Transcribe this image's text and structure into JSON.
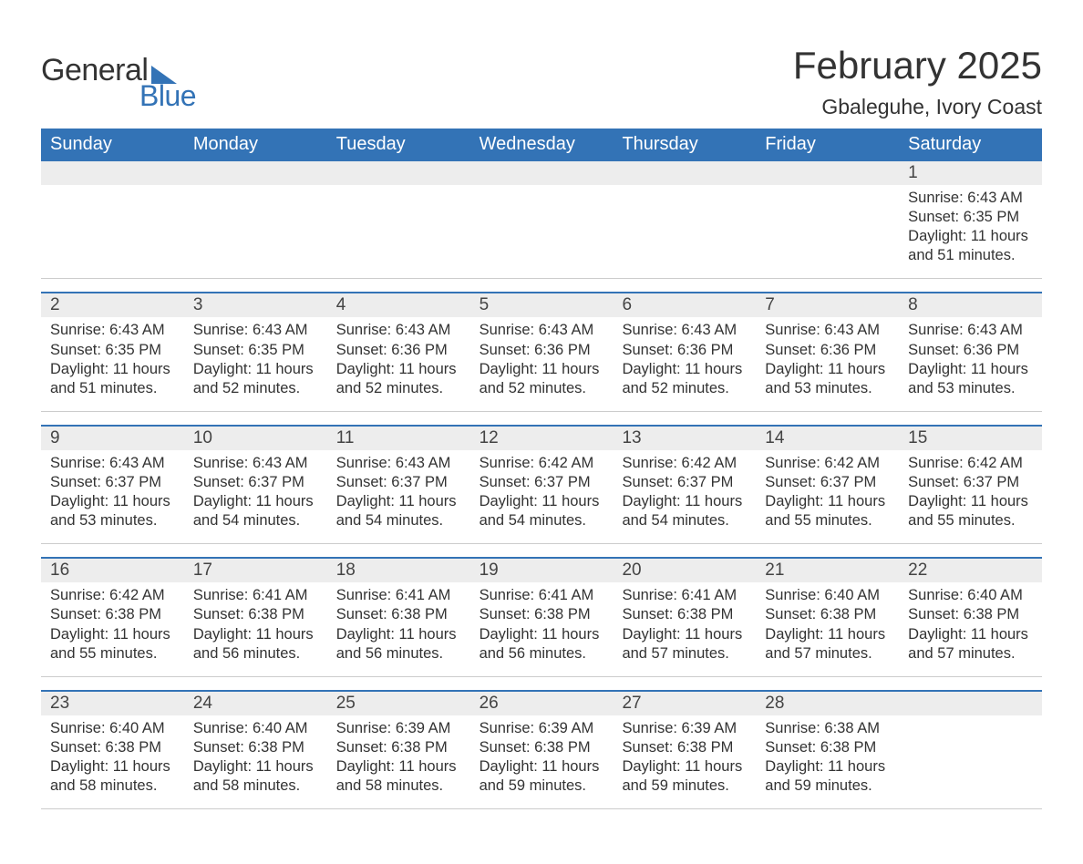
{
  "brand": {
    "word1": "General",
    "word2": "Blue"
  },
  "title": "February 2025",
  "subtitle": "Gbaleguhe, Ivory Coast",
  "colors": {
    "accent": "#3373b6",
    "header_text": "#ffffff",
    "daynum_bg": "#ededed",
    "text": "#333333",
    "background": "#ffffff",
    "row_border_top": "#3373b6",
    "row_border_bottom": "#cccccc"
  },
  "typography": {
    "title_fontsize": 42,
    "subtitle_fontsize": 23,
    "dayhead_fontsize": 20,
    "daynum_fontsize": 19,
    "info_fontsize": 16.5,
    "logo_fontsize": 34
  },
  "layout": {
    "columns": 7,
    "rows": 5,
    "cell_min_height": 120
  },
  "day_headers": [
    "Sunday",
    "Monday",
    "Tuesday",
    "Wednesday",
    "Thursday",
    "Friday",
    "Saturday"
  ],
  "weeks": [
    [
      null,
      null,
      null,
      null,
      null,
      null,
      {
        "day": "1",
        "sunrise": "Sunrise: 6:43 AM",
        "sunset": "Sunset: 6:35 PM",
        "daylight1": "Daylight: 11 hours",
        "daylight2": "and 51 minutes."
      }
    ],
    [
      {
        "day": "2",
        "sunrise": "Sunrise: 6:43 AM",
        "sunset": "Sunset: 6:35 PM",
        "daylight1": "Daylight: 11 hours",
        "daylight2": "and 51 minutes."
      },
      {
        "day": "3",
        "sunrise": "Sunrise: 6:43 AM",
        "sunset": "Sunset: 6:35 PM",
        "daylight1": "Daylight: 11 hours",
        "daylight2": "and 52 minutes."
      },
      {
        "day": "4",
        "sunrise": "Sunrise: 6:43 AM",
        "sunset": "Sunset: 6:36 PM",
        "daylight1": "Daylight: 11 hours",
        "daylight2": "and 52 minutes."
      },
      {
        "day": "5",
        "sunrise": "Sunrise: 6:43 AM",
        "sunset": "Sunset: 6:36 PM",
        "daylight1": "Daylight: 11 hours",
        "daylight2": "and 52 minutes."
      },
      {
        "day": "6",
        "sunrise": "Sunrise: 6:43 AM",
        "sunset": "Sunset: 6:36 PM",
        "daylight1": "Daylight: 11 hours",
        "daylight2": "and 52 minutes."
      },
      {
        "day": "7",
        "sunrise": "Sunrise: 6:43 AM",
        "sunset": "Sunset: 6:36 PM",
        "daylight1": "Daylight: 11 hours",
        "daylight2": "and 53 minutes."
      },
      {
        "day": "8",
        "sunrise": "Sunrise: 6:43 AM",
        "sunset": "Sunset: 6:36 PM",
        "daylight1": "Daylight: 11 hours",
        "daylight2": "and 53 minutes."
      }
    ],
    [
      {
        "day": "9",
        "sunrise": "Sunrise: 6:43 AM",
        "sunset": "Sunset: 6:37 PM",
        "daylight1": "Daylight: 11 hours",
        "daylight2": "and 53 minutes."
      },
      {
        "day": "10",
        "sunrise": "Sunrise: 6:43 AM",
        "sunset": "Sunset: 6:37 PM",
        "daylight1": "Daylight: 11 hours",
        "daylight2": "and 54 minutes."
      },
      {
        "day": "11",
        "sunrise": "Sunrise: 6:43 AM",
        "sunset": "Sunset: 6:37 PM",
        "daylight1": "Daylight: 11 hours",
        "daylight2": "and 54 minutes."
      },
      {
        "day": "12",
        "sunrise": "Sunrise: 6:42 AM",
        "sunset": "Sunset: 6:37 PM",
        "daylight1": "Daylight: 11 hours",
        "daylight2": "and 54 minutes."
      },
      {
        "day": "13",
        "sunrise": "Sunrise: 6:42 AM",
        "sunset": "Sunset: 6:37 PM",
        "daylight1": "Daylight: 11 hours",
        "daylight2": "and 54 minutes."
      },
      {
        "day": "14",
        "sunrise": "Sunrise: 6:42 AM",
        "sunset": "Sunset: 6:37 PM",
        "daylight1": "Daylight: 11 hours",
        "daylight2": "and 55 minutes."
      },
      {
        "day": "15",
        "sunrise": "Sunrise: 6:42 AM",
        "sunset": "Sunset: 6:37 PM",
        "daylight1": "Daylight: 11 hours",
        "daylight2": "and 55 minutes."
      }
    ],
    [
      {
        "day": "16",
        "sunrise": "Sunrise: 6:42 AM",
        "sunset": "Sunset: 6:38 PM",
        "daylight1": "Daylight: 11 hours",
        "daylight2": "and 55 minutes."
      },
      {
        "day": "17",
        "sunrise": "Sunrise: 6:41 AM",
        "sunset": "Sunset: 6:38 PM",
        "daylight1": "Daylight: 11 hours",
        "daylight2": "and 56 minutes."
      },
      {
        "day": "18",
        "sunrise": "Sunrise: 6:41 AM",
        "sunset": "Sunset: 6:38 PM",
        "daylight1": "Daylight: 11 hours",
        "daylight2": "and 56 minutes."
      },
      {
        "day": "19",
        "sunrise": "Sunrise: 6:41 AM",
        "sunset": "Sunset: 6:38 PM",
        "daylight1": "Daylight: 11 hours",
        "daylight2": "and 56 minutes."
      },
      {
        "day": "20",
        "sunrise": "Sunrise: 6:41 AM",
        "sunset": "Sunset: 6:38 PM",
        "daylight1": "Daylight: 11 hours",
        "daylight2": "and 57 minutes."
      },
      {
        "day": "21",
        "sunrise": "Sunrise: 6:40 AM",
        "sunset": "Sunset: 6:38 PM",
        "daylight1": "Daylight: 11 hours",
        "daylight2": "and 57 minutes."
      },
      {
        "day": "22",
        "sunrise": "Sunrise: 6:40 AM",
        "sunset": "Sunset: 6:38 PM",
        "daylight1": "Daylight: 11 hours",
        "daylight2": "and 57 minutes."
      }
    ],
    [
      {
        "day": "23",
        "sunrise": "Sunrise: 6:40 AM",
        "sunset": "Sunset: 6:38 PM",
        "daylight1": "Daylight: 11 hours",
        "daylight2": "and 58 minutes."
      },
      {
        "day": "24",
        "sunrise": "Sunrise: 6:40 AM",
        "sunset": "Sunset: 6:38 PM",
        "daylight1": "Daylight: 11 hours",
        "daylight2": "and 58 minutes."
      },
      {
        "day": "25",
        "sunrise": "Sunrise: 6:39 AM",
        "sunset": "Sunset: 6:38 PM",
        "daylight1": "Daylight: 11 hours",
        "daylight2": "and 58 minutes."
      },
      {
        "day": "26",
        "sunrise": "Sunrise: 6:39 AM",
        "sunset": "Sunset: 6:38 PM",
        "daylight1": "Daylight: 11 hours",
        "daylight2": "and 59 minutes."
      },
      {
        "day": "27",
        "sunrise": "Sunrise: 6:39 AM",
        "sunset": "Sunset: 6:38 PM",
        "daylight1": "Daylight: 11 hours",
        "daylight2": "and 59 minutes."
      },
      {
        "day": "28",
        "sunrise": "Sunrise: 6:38 AM",
        "sunset": "Sunset: 6:38 PM",
        "daylight1": "Daylight: 11 hours",
        "daylight2": "and 59 minutes."
      },
      null
    ]
  ]
}
